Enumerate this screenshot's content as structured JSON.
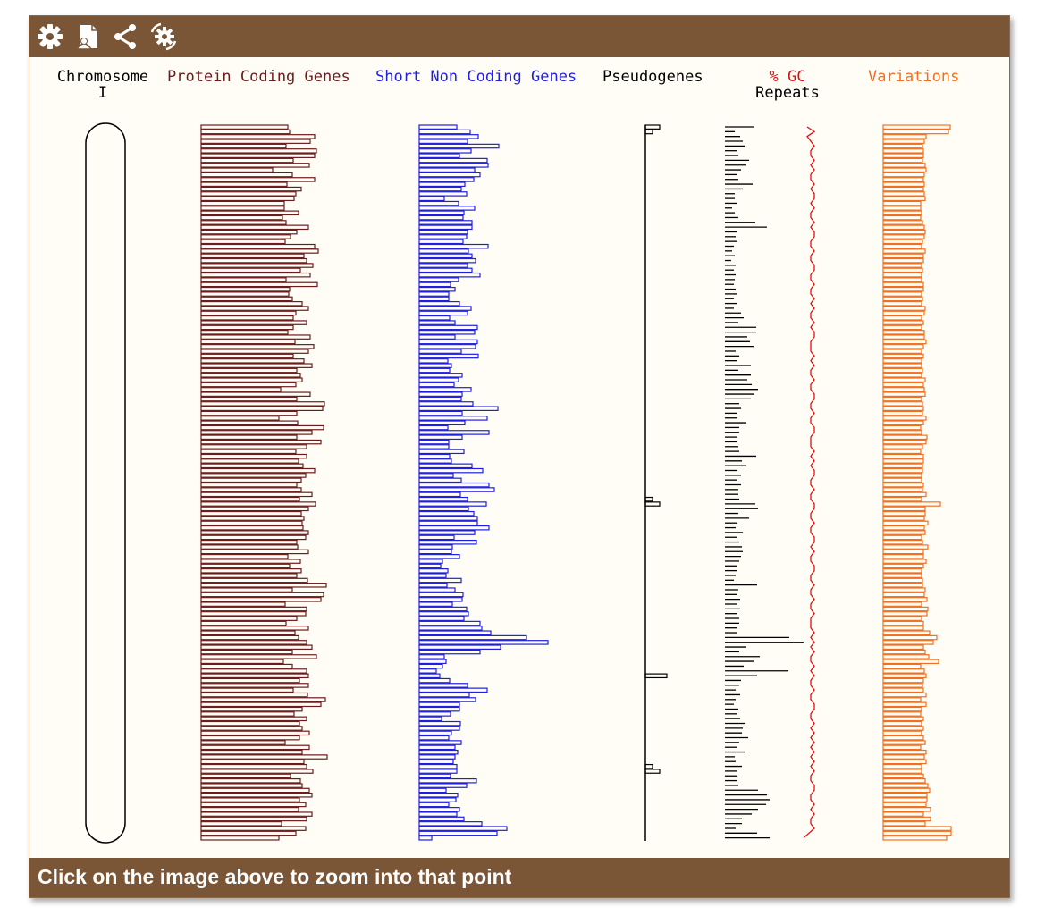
{
  "toolbar": {
    "icons": [
      "gear-icon",
      "export-document-icon",
      "share-icon",
      "reset-config-icon"
    ]
  },
  "footer": {
    "text": "Click on the image above to zoom into that point"
  },
  "colors": {
    "toolbar_bg": "#7a5637",
    "panel_bg": "#fffdf6",
    "protein_coding": "#6b1c1c",
    "short_non_coding": "#1f1fe0",
    "pseudogenes": "#000000",
    "repeats": "#000000",
    "gc": "#e01010",
    "variations": "#f07020"
  },
  "chart_data": {
    "type": "bar",
    "orientation": "horizontal",
    "chromosome": {
      "label_line1": "Chromosome",
      "label_line2": "I"
    },
    "tracks": [
      {
        "key": "protein",
        "label": "Protein Coding Genes"
      },
      {
        "key": "short",
        "label": "Short Non Coding Genes"
      },
      {
        "key": "pseudo",
        "label": "Pseudogenes"
      },
      {
        "key": "gc",
        "label": "% GC"
      },
      {
        "key": "repeats",
        "label": "Repeats"
      },
      {
        "key": "variations",
        "label": "Variations"
      }
    ],
    "bins": 150,
    "protein_coding": [
      97,
      99,
      127,
      122,
      95,
      129,
      127,
      103,
      121,
      80,
      102,
      127,
      96,
      112,
      106,
      104,
      93,
      93,
      109,
      91,
      95,
      120,
      107,
      100,
      94,
      127,
      131,
      115,
      118,
      125,
      111,
      122,
      95,
      130,
      99,
      98,
      102,
      113,
      120,
      106,
      103,
      118,
      103,
      97,
      122,
      105,
      126,
      120,
      103,
      115,
      124,
      107,
      111,
      113,
      106,
      89,
      122,
      107,
      138,
      136,
      107,
      87,
      108,
      137,
      124,
      107,
      134,
      118,
      106,
      118,
      109,
      114,
      127,
      117,
      112,
      107,
      112,
      124,
      110,
      128,
      120,
      112,
      115,
      113,
      114,
      120,
      117,
      107,
      108,
      120,
      97,
      111,
      99,
      112,
      107,
      119,
      140,
      102,
      137,
      134,
      94,
      118,
      117,
      107,
      95,
      120,
      105,
      109,
      118,
      124,
      102,
      129,
      92,
      102,
      118,
      120,
      110,
      120,
      103,
      119,
      139,
      134,
      113,
      104,
      118,
      110,
      113,
      121,
      110,
      94,
      121,
      113,
      141,
      115,
      118,
      125,
      100,
      111,
      113,
      121,
      124,
      110,
      117,
      109,
      124,
      118,
      90,
      117,
      106,
      87
    ],
    "short_non_coding": [
      42,
      57,
      66,
      54,
      89,
      58,
      45,
      76,
      77,
      62,
      68,
      61,
      51,
      47,
      53,
      28,
      44,
      62,
      50,
      49,
      59,
      59,
      54,
      53,
      49,
      77,
      55,
      59,
      63,
      54,
      59,
      68,
      44,
      35,
      40,
      33,
      33,
      45,
      58,
      54,
      34,
      40,
      65,
      62,
      40,
      65,
      63,
      47,
      66,
      32,
      36,
      34,
      48,
      44,
      39,
      58,
      48,
      47,
      60,
      88,
      48,
      76,
      51,
      32,
      78,
      48,
      33,
      33,
      50,
      34,
      36,
      59,
      71,
      38,
      47,
      78,
      84,
      46,
      54,
      75,
      55,
      61,
      65,
      65,
      78,
      62,
      39,
      64,
      37,
      36,
      45,
      26,
      24,
      32,
      30,
      47,
      31,
      40,
      49,
      48,
      37,
      53,
      55,
      50,
      68,
      70,
      80,
      120,
      144,
      91,
      68,
      28,
      30,
      26,
      19,
      23,
      34,
      54,
      76,
      56,
      63,
      45,
      45,
      35,
      25,
      46,
      45,
      36,
      33,
      47,
      40,
      43,
      40,
      38,
      42,
      42,
      35,
      64,
      53,
      30,
      43,
      41,
      33,
      45,
      42,
      50,
      70,
      98,
      87,
      14
    ],
    "pseudogenes": [
      {
        "bin": 0,
        "value": 16
      },
      {
        "bin": 1,
        "value": 8
      },
      {
        "bin": 78,
        "value": 8
      },
      {
        "bin": 79,
        "value": 16
      },
      {
        "bin": 115,
        "value": 24
      },
      {
        "bin": 134,
        "value": 8
      },
      {
        "bin": 135,
        "value": 16
      }
    ],
    "repeats": [
      33,
      11,
      17,
      20,
      22,
      14,
      15,
      27,
      23,
      18,
      13,
      15,
      31,
      20,
      11,
      11,
      13,
      8,
      11,
      15,
      34,
      47,
      13,
      12,
      14,
      10,
      8,
      11,
      7,
      12,
      10,
      12,
      11,
      10,
      12,
      13,
      10,
      13,
      10,
      18,
      21,
      15,
      35,
      35,
      25,
      28,
      32,
      12,
      16,
      13,
      29,
      15,
      29,
      25,
      30,
      37,
      33,
      29,
      16,
      18,
      13,
      14,
      24,
      16,
      16,
      14,
      13,
      15,
      16,
      35,
      19,
      23,
      14,
      18,
      13,
      18,
      15,
      15,
      16,
      34,
      37,
      15,
      27,
      14,
      12,
      20,
      13,
      16,
      19,
      20,
      18,
      16,
      13,
      13,
      12,
      10,
      36,
      15,
      13,
      17,
      14,
      17,
      14,
      16,
      16,
      14,
      13,
      72,
      88,
      24,
      16,
      39,
      32,
      21,
      71,
      36,
      18,
      16,
      12,
      17,
      12,
      10,
      15,
      14,
      17,
      22,
      20,
      19,
      26,
      16,
      13,
      22,
      11,
      12,
      19,
      13,
      14,
      14,
      15,
      37,
      47,
      50,
      46,
      37,
      30,
      19,
      19,
      12,
      36,
      50
    ],
    "percent_gc": [
      44,
      52,
      44,
      48,
      52,
      48,
      48,
      52,
      48,
      52,
      48,
      48,
      52,
      48,
      52,
      52,
      48,
      52,
      48,
      48,
      52,
      48,
      52,
      52,
      48,
      48,
      52,
      48,
      48,
      52,
      52,
      48,
      48,
      52,
      48,
      48,
      52,
      48,
      52,
      48,
      48,
      52,
      48,
      52,
      52,
      48,
      48,
      48,
      52,
      48,
      52,
      48,
      48,
      52,
      48,
      48,
      52,
      52,
      48,
      48,
      52,
      48,
      48,
      52,
      52,
      48,
      48,
      48,
      52,
      48,
      52,
      48,
      52,
      52,
      48,
      48,
      52,
      48,
      48,
      52,
      52,
      48,
      48,
      52,
      48,
      48,
      52,
      52,
      48,
      52,
      48,
      48,
      52,
      52,
      48,
      48,
      52,
      48,
      48,
      52,
      48,
      48,
      52,
      48,
      48,
      48,
      52,
      48,
      52,
      48,
      52,
      48,
      48,
      52,
      48,
      52,
      48,
      48,
      52,
      48,
      48,
      52,
      52,
      48,
      48,
      52,
      48,
      52,
      48,
      52,
      48,
      52,
      48,
      52,
      48,
      52,
      48,
      48,
      52,
      52,
      48,
      48,
      52,
      48,
      52,
      48,
      48,
      52,
      46,
      40
    ],
    "variations": [
      75,
      73,
      48,
      46,
      44,
      45,
      45,
      44,
      47,
      48,
      46,
      45,
      46,
      45,
      46,
      47,
      42,
      42,
      43,
      42,
      44,
      46,
      47,
      46,
      44,
      43,
      47,
      45,
      45,
      43,
      44,
      43,
      43,
      45,
      45,
      43,
      44,
      43,
      47,
      46,
      43,
      45,
      43,
      46,
      46,
      48,
      45,
      43,
      45,
      43,
      43,
      44,
      43,
      47,
      45,
      46,
      47,
      43,
      44,
      45,
      44,
      48,
      45,
      42,
      43,
      49,
      48,
      44,
      42,
      45,
      45,
      44,
      44,
      43,
      43,
      45,
      44,
      48,
      43,
      64,
      47,
      47,
      46,
      50,
      46,
      47,
      43,
      44,
      50,
      45,
      45,
      48,
      45,
      43,
      43,
      44,
      44,
      47,
      46,
      49,
      43,
      50,
      49,
      43,
      45,
      45,
      52,
      60,
      56,
      45,
      47,
      51,
      62,
      42,
      46,
      48,
      45,
      44,
      45,
      48,
      42,
      48,
      43,
      42,
      45,
      43,
      45,
      43,
      45,
      47,
      42,
      48,
      46,
      48,
      43,
      43,
      45,
      47,
      50,
      52,
      49,
      49,
      48,
      53,
      45,
      53,
      47,
      76,
      76,
      71
    ]
  }
}
